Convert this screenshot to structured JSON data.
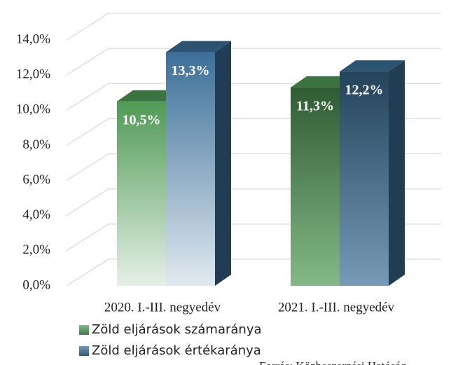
{
  "chart_data": {
    "type": "bar3d",
    "categories": [
      "2020. I.-III. negyedév",
      "2021. I.-III. negyedév"
    ],
    "series": [
      {
        "name": "Zöld eljárások számaránya",
        "color": "#4f9a55",
        "values": [
          10.5,
          11.3
        ],
        "value_labels": [
          "10,5%",
          "11,3%"
        ]
      },
      {
        "name": "Zöld eljárások értékaránya",
        "color": "#3b6f98",
        "values": [
          13.3,
          12.2
        ],
        "value_labels": [
          "13,3%",
          "12,2%"
        ]
      }
    ],
    "ylim": [
      0,
      14
    ],
    "yticks": [
      {
        "value": 0,
        "label": "0,0%"
      },
      {
        "value": 2,
        "label": "2,0%"
      },
      {
        "value": 4,
        "label": "4,0%"
      },
      {
        "value": 6,
        "label": "6,0%"
      },
      {
        "value": 8,
        "label": "8,0%"
      },
      {
        "value": 10,
        "label": "10,0%"
      },
      {
        "value": 12,
        "label": "12,0%"
      },
      {
        "value": 14,
        "label": "14,0%"
      }
    ],
    "grid": true,
    "source": "Forrás: Közbeszerzési Hatóság"
  }
}
